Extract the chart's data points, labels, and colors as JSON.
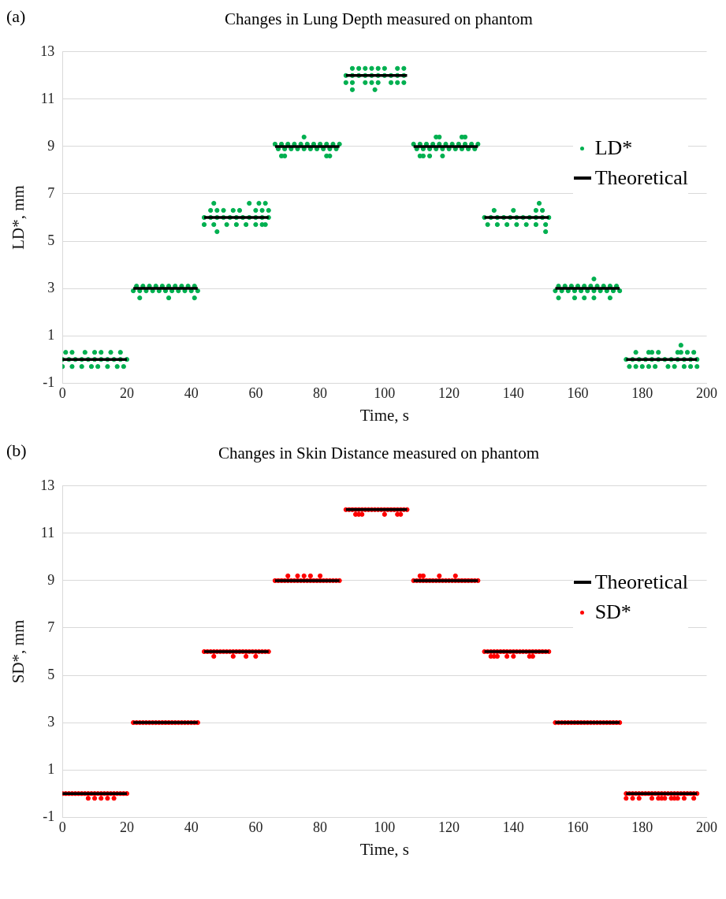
{
  "chart_data": [
    {
      "type": "scatter",
      "title": "Changes in Lung Depth measured on phantom",
      "xlabel": "Time, s",
      "ylabel": "LD*, mm",
      "annotations": [
        "(a)"
      ],
      "xlim": [
        0,
        200
      ],
      "xticks": [
        0,
        20,
        40,
        60,
        80,
        100,
        120,
        140,
        160,
        180,
        200
      ],
      "ylim": [
        -1,
        13
      ],
      "yticks": [
        -1,
        1,
        3,
        5,
        7,
        9,
        11,
        13
      ],
      "grid": "y",
      "legend": "right",
      "series": [
        {
          "name": "LD*",
          "type": "scatter",
          "marker": "circle",
          "color": "#00b050",
          "x": [
            0,
            2,
            4,
            6,
            8,
            10,
            12,
            14,
            16,
            18,
            20,
            1,
            3,
            7,
            10,
            12,
            15,
            18,
            0,
            3,
            6,
            9,
            11,
            14,
            17,
            19,
            23,
            25,
            27,
            29,
            31,
            33,
            35,
            37,
            39,
            41,
            22,
            24,
            26,
            28,
            30,
            32,
            34,
            36,
            38,
            40,
            42,
            24,
            33,
            41,
            44,
            46,
            48,
            50,
            52,
            54,
            56,
            58,
            60,
            62,
            64,
            46,
            48,
            50,
            53,
            55,
            60,
            62,
            64,
            47,
            58,
            61,
            63,
            44,
            47,
            51,
            54,
            57,
            60,
            62,
            63,
            48,
            66,
            68,
            70,
            72,
            74,
            76,
            78,
            80,
            82,
            84,
            86,
            67,
            69,
            71,
            73,
            75,
            77,
            79,
            81,
            83,
            85,
            75,
            68,
            69,
            82,
            83,
            90,
            92,
            94,
            96,
            98,
            100,
            104,
            106,
            88,
            90,
            92,
            94,
            96,
            98,
            100,
            102,
            104,
            106,
            88,
            90,
            94,
            96,
            98,
            102,
            104,
            106,
            90,
            97,
            109,
            111,
            113,
            115,
            117,
            119,
            121,
            123,
            125,
            127,
            129,
            110,
            112,
            114,
            116,
            118,
            120,
            122,
            124,
            126,
            128,
            116,
            117,
            124,
            125,
            111,
            112,
            114,
            118,
            131,
            133,
            135,
            137,
            139,
            141,
            143,
            145,
            147,
            149,
            151,
            134,
            140,
            147,
            149,
            132,
            135,
            138,
            141,
            144,
            147,
            150,
            148,
            150,
            154,
            156,
            158,
            160,
            162,
            164,
            166,
            168,
            170,
            172,
            153,
            155,
            157,
            159,
            161,
            163,
            165,
            167,
            169,
            171,
            173,
            165,
            154,
            159,
            162,
            165,
            170,
            175,
            177,
            179,
            181,
            183,
            185,
            187,
            189,
            191,
            193,
            195,
            197,
            178,
            182,
            183,
            185,
            191,
            192,
            194,
            196,
            176,
            178,
            180,
            182,
            184,
            188,
            190,
            193,
            195,
            197,
            192
          ],
          "values": [
            0,
            0,
            0,
            0,
            0,
            0,
            0,
            0,
            0,
            0,
            0,
            0.3,
            0.3,
            0.3,
            0.3,
            0.3,
            0.3,
            0.3,
            -0.3,
            -0.3,
            -0.3,
            -0.3,
            -0.3,
            -0.3,
            -0.3,
            -0.3,
            3.1,
            3.1,
            3.1,
            3.1,
            3.1,
            3.1,
            3.1,
            3.1,
            3.1,
            3.1,
            2.9,
            2.9,
            2.9,
            2.9,
            2.9,
            2.9,
            2.9,
            2.9,
            2.9,
            2.9,
            2.9,
            2.6,
            2.6,
            2.6,
            6,
            6,
            6,
            6,
            6,
            6,
            6,
            6,
            6,
            6,
            6,
            6.3,
            6.3,
            6.3,
            6.3,
            6.3,
            6.3,
            6.3,
            6.3,
            6.6,
            6.6,
            6.6,
            6.6,
            5.7,
            5.7,
            5.7,
            5.7,
            5.7,
            5.7,
            5.7,
            5.7,
            5.4,
            9.1,
            9.1,
            9.1,
            9.1,
            9.1,
            9.1,
            9.1,
            9.1,
            9.1,
            9.1,
            9.1,
            8.9,
            8.9,
            8.9,
            8.9,
            8.9,
            8.9,
            8.9,
            8.9,
            8.9,
            8.9,
            9.4,
            8.6,
            8.6,
            8.6,
            8.6,
            12.3,
            12.3,
            12.3,
            12.3,
            12.3,
            12.3,
            12.3,
            12.3,
            12,
            12,
            12,
            12,
            12,
            12,
            12,
            12,
            12,
            12,
            11.7,
            11.7,
            11.7,
            11.7,
            11.7,
            11.7,
            11.7,
            11.7,
            11.4,
            11.4,
            9.1,
            9.1,
            9.1,
            9.1,
            9.1,
            9.1,
            9.1,
            9.1,
            9.1,
            9.1,
            9.1,
            8.9,
            8.9,
            8.9,
            8.9,
            8.9,
            8.9,
            8.9,
            8.9,
            8.9,
            8.9,
            9.4,
            9.4,
            9.4,
            9.4,
            8.6,
            8.6,
            8.6,
            8.6,
            6,
            6,
            6,
            6,
            6,
            6,
            6,
            6,
            6,
            6,
            6,
            6.3,
            6.3,
            6.3,
            6.3,
            5.7,
            5.7,
            5.7,
            5.7,
            5.7,
            5.7,
            5.7,
            6.6,
            5.4,
            3.1,
            3.1,
            3.1,
            3.1,
            3.1,
            3.1,
            3.1,
            3.1,
            3.1,
            3.1,
            2.9,
            2.9,
            2.9,
            2.9,
            2.9,
            2.9,
            2.9,
            2.9,
            2.9,
            2.9,
            2.9,
            3.4,
            2.6,
            2.6,
            2.6,
            2.6,
            2.6,
            0,
            0,
            0,
            0,
            0,
            0,
            0,
            0,
            0,
            0,
            0,
            0,
            0.3,
            0.3,
            0.3,
            0.3,
            0.3,
            0.3,
            0.3,
            0.3,
            -0.3,
            -0.3,
            -0.3,
            -0.3,
            -0.3,
            -0.3,
            -0.3,
            -0.3,
            -0.3,
            -0.3,
            0.6
          ]
        },
        {
          "name": "Theoretical",
          "type": "line",
          "color": "#000000",
          "x": [
            0,
            20,
            21,
            22,
            42,
            43,
            44,
            64,
            65,
            66,
            86,
            87,
            88,
            107,
            108,
            109,
            129,
            130,
            131,
            151,
            152,
            153,
            173,
            174,
            175,
            197
          ],
          "values": [
            0,
            0,
            null,
            3,
            3,
            null,
            6,
            6,
            null,
            9,
            9,
            null,
            12,
            12,
            null,
            9,
            9,
            null,
            6,
            6,
            null,
            3,
            3,
            null,
            0,
            0
          ]
        }
      ]
    },
    {
      "type": "scatter",
      "title": "Changes in Skin Distance measured on phantom",
      "xlabel": "Time, s",
      "ylabel": "SD*, mm",
      "annotations": [
        "(b)"
      ],
      "xlim": [
        0,
        200
      ],
      "xticks": [
        0,
        20,
        40,
        60,
        80,
        100,
        120,
        140,
        160,
        180,
        200
      ],
      "ylim": [
        -1,
        13
      ],
      "yticks": [
        -1,
        1,
        3,
        5,
        7,
        9,
        11,
        13
      ],
      "grid": "y",
      "legend": "right",
      "series": [
        {
          "name": "Theoretical",
          "type": "line",
          "color": "#000000",
          "x": [
            0,
            20,
            21,
            22,
            42,
            43,
            44,
            64,
            65,
            66,
            86,
            87,
            88,
            107,
            108,
            109,
            129,
            130,
            131,
            151,
            152,
            153,
            173,
            174,
            175,
            197
          ],
          "values": [
            0,
            0,
            null,
            3,
            3,
            null,
            6,
            6,
            null,
            9,
            9,
            null,
            12,
            12,
            null,
            9,
            9,
            null,
            6,
            6,
            null,
            3,
            3,
            null,
            0,
            0
          ]
        },
        {
          "name": "SD*",
          "type": "scatter",
          "marker": "circle",
          "color": "#ff0000",
          "x": [
            0,
            1,
            2,
            3,
            4,
            5,
            6,
            7,
            8,
            9,
            10,
            11,
            12,
            13,
            14,
            15,
            16,
            17,
            18,
            19,
            20,
            8,
            10,
            12,
            14,
            16,
            22,
            23,
            24,
            25,
            26,
            27,
            28,
            29,
            30,
            31,
            32,
            33,
            34,
            35,
            36,
            37,
            38,
            39,
            40,
            41,
            42,
            44,
            45,
            46,
            47,
            48,
            49,
            50,
            51,
            52,
            53,
            54,
            55,
            56,
            57,
            58,
            59,
            60,
            61,
            62,
            63,
            64,
            47,
            53,
            57,
            60,
            66,
            67,
            68,
            69,
            70,
            71,
            72,
            73,
            74,
            75,
            76,
            77,
            78,
            79,
            80,
            81,
            82,
            83,
            84,
            85,
            86,
            70,
            73,
            75,
            77,
            80,
            88,
            89,
            90,
            91,
            92,
            93,
            94,
            95,
            96,
            97,
            98,
            99,
            100,
            101,
            102,
            103,
            104,
            105,
            106,
            107,
            91,
            92,
            93,
            100,
            104,
            105,
            109,
            110,
            111,
            112,
            113,
            114,
            115,
            116,
            117,
            118,
            119,
            120,
            121,
            122,
            123,
            124,
            125,
            126,
            127,
            128,
            129,
            111,
            112,
            117,
            122,
            131,
            132,
            133,
            134,
            135,
            136,
            137,
            138,
            139,
            140,
            141,
            142,
            143,
            144,
            145,
            146,
            147,
            148,
            149,
            150,
            151,
            133,
            134,
            135,
            138,
            140,
            145,
            146,
            153,
            154,
            155,
            156,
            157,
            158,
            159,
            160,
            161,
            162,
            163,
            164,
            165,
            166,
            167,
            168,
            169,
            170,
            171,
            172,
            173,
            175,
            176,
            177,
            178,
            179,
            180,
            181,
            182,
            183,
            184,
            185,
            186,
            187,
            188,
            189,
            190,
            191,
            192,
            193,
            194,
            195,
            196,
            197,
            175,
            177,
            179,
            183,
            185,
            186,
            187,
            189,
            190,
            191,
            193,
            196
          ],
          "values": [
            0,
            0,
            0,
            0,
            0,
            0,
            0,
            0,
            0,
            0,
            0,
            0,
            0,
            0,
            0,
            0,
            0,
            0,
            0,
            0,
            0,
            -0.2,
            -0.2,
            -0.2,
            -0.2,
            -0.2,
            3,
            3,
            3,
            3,
            3,
            3,
            3,
            3,
            3,
            3,
            3,
            3,
            3,
            3,
            3,
            3,
            3,
            3,
            3,
            3,
            3,
            6,
            6,
            6,
            6,
            6,
            6,
            6,
            6,
            6,
            6,
            6,
            6,
            6,
            6,
            6,
            6,
            6,
            6,
            6,
            6,
            6,
            5.8,
            5.8,
            5.8,
            5.8,
            9,
            9,
            9,
            9,
            9,
            9,
            9,
            9,
            9,
            9,
            9,
            9,
            9,
            9,
            9,
            9,
            9,
            9,
            9,
            9,
            9,
            9.2,
            9.2,
            9.2,
            9.2,
            9.2,
            12,
            12,
            12,
            12,
            12,
            12,
            12,
            12,
            12,
            12,
            12,
            12,
            12,
            12,
            12,
            12,
            12,
            12,
            12,
            12,
            11.8,
            11.8,
            11.8,
            11.8,
            11.8,
            11.8,
            9,
            9,
            9,
            9,
            9,
            9,
            9,
            9,
            9,
            9,
            9,
            9,
            9,
            9,
            9,
            9,
            9,
            9,
            9,
            9,
            9,
            9.2,
            9.2,
            9.2,
            9.2,
            6,
            6,
            6,
            6,
            6,
            6,
            6,
            6,
            6,
            6,
            6,
            6,
            6,
            6,
            6,
            6,
            6,
            6,
            6,
            6,
            6,
            5.8,
            5.8,
            5.8,
            5.8,
            5.8,
            5.8,
            5.8,
            3,
            3,
            3,
            3,
            3,
            3,
            3,
            3,
            3,
            3,
            3,
            3,
            3,
            3,
            3,
            3,
            3,
            3,
            3,
            3,
            3,
            0,
            0,
            0,
            0,
            0,
            0,
            0,
            0,
            0,
            0,
            0,
            0,
            0,
            0,
            0,
            0,
            0,
            0,
            0,
            0,
            0,
            0,
            0,
            -0.2,
            -0.2,
            -0.2,
            -0.2,
            -0.2,
            -0.2,
            -0.2,
            -0.2,
            -0.2,
            -0.2,
            -0.2,
            -0.2
          ]
        }
      ]
    }
  ]
}
